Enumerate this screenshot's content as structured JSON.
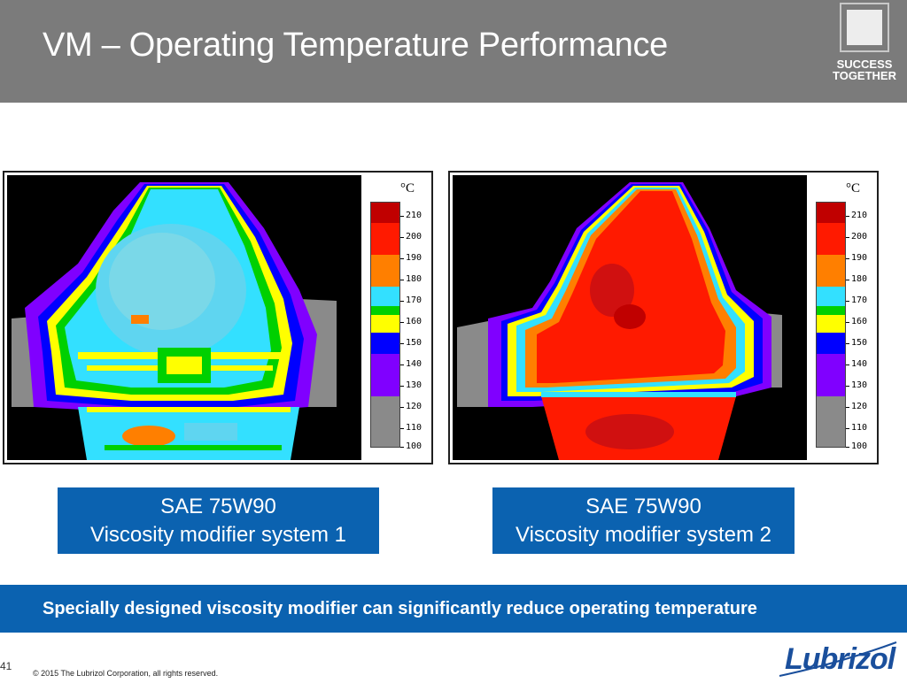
{
  "slide": {
    "title": "VM – Operating Temperature Performance",
    "brand_line1": "SUCCESS",
    "brand_line2": "TOGETHER",
    "page_number": "41",
    "copyright": "© 2015 The Lubrizol Corporation, all rights reserved.",
    "company_logo": "Lubrizol"
  },
  "colors": {
    "header_gray": "#7b7b7b",
    "accent_blue": "#0b62b0",
    "logo_blue": "#1a4f9c"
  },
  "thermal_scale": {
    "unit": "°C",
    "ticks": [
      "210",
      "200",
      "190",
      "180",
      "170",
      "160",
      "150",
      "140",
      "130",
      "120",
      "110",
      "100"
    ],
    "bands": [
      {
        "color": "#c00000"
      },
      {
        "color": "#ff1a00"
      },
      {
        "color": "#ff7f00"
      },
      {
        "color": "#33e0ff"
      },
      {
        "color": "#00d000"
      },
      {
        "color": "#ffff00"
      },
      {
        "color": "#0000ff"
      },
      {
        "color": "#8000ff"
      },
      {
        "color": "#8a8a8a"
      }
    ]
  },
  "panels": [
    {
      "line1": "SAE 75W90",
      "line2": "Viscosity modifier system 1"
    },
    {
      "line1": "SAE 75W90",
      "line2": "Viscosity modifier system 2"
    }
  ],
  "banner": {
    "text": "Specially designed viscosity modifier can significantly reduce operating temperature"
  }
}
